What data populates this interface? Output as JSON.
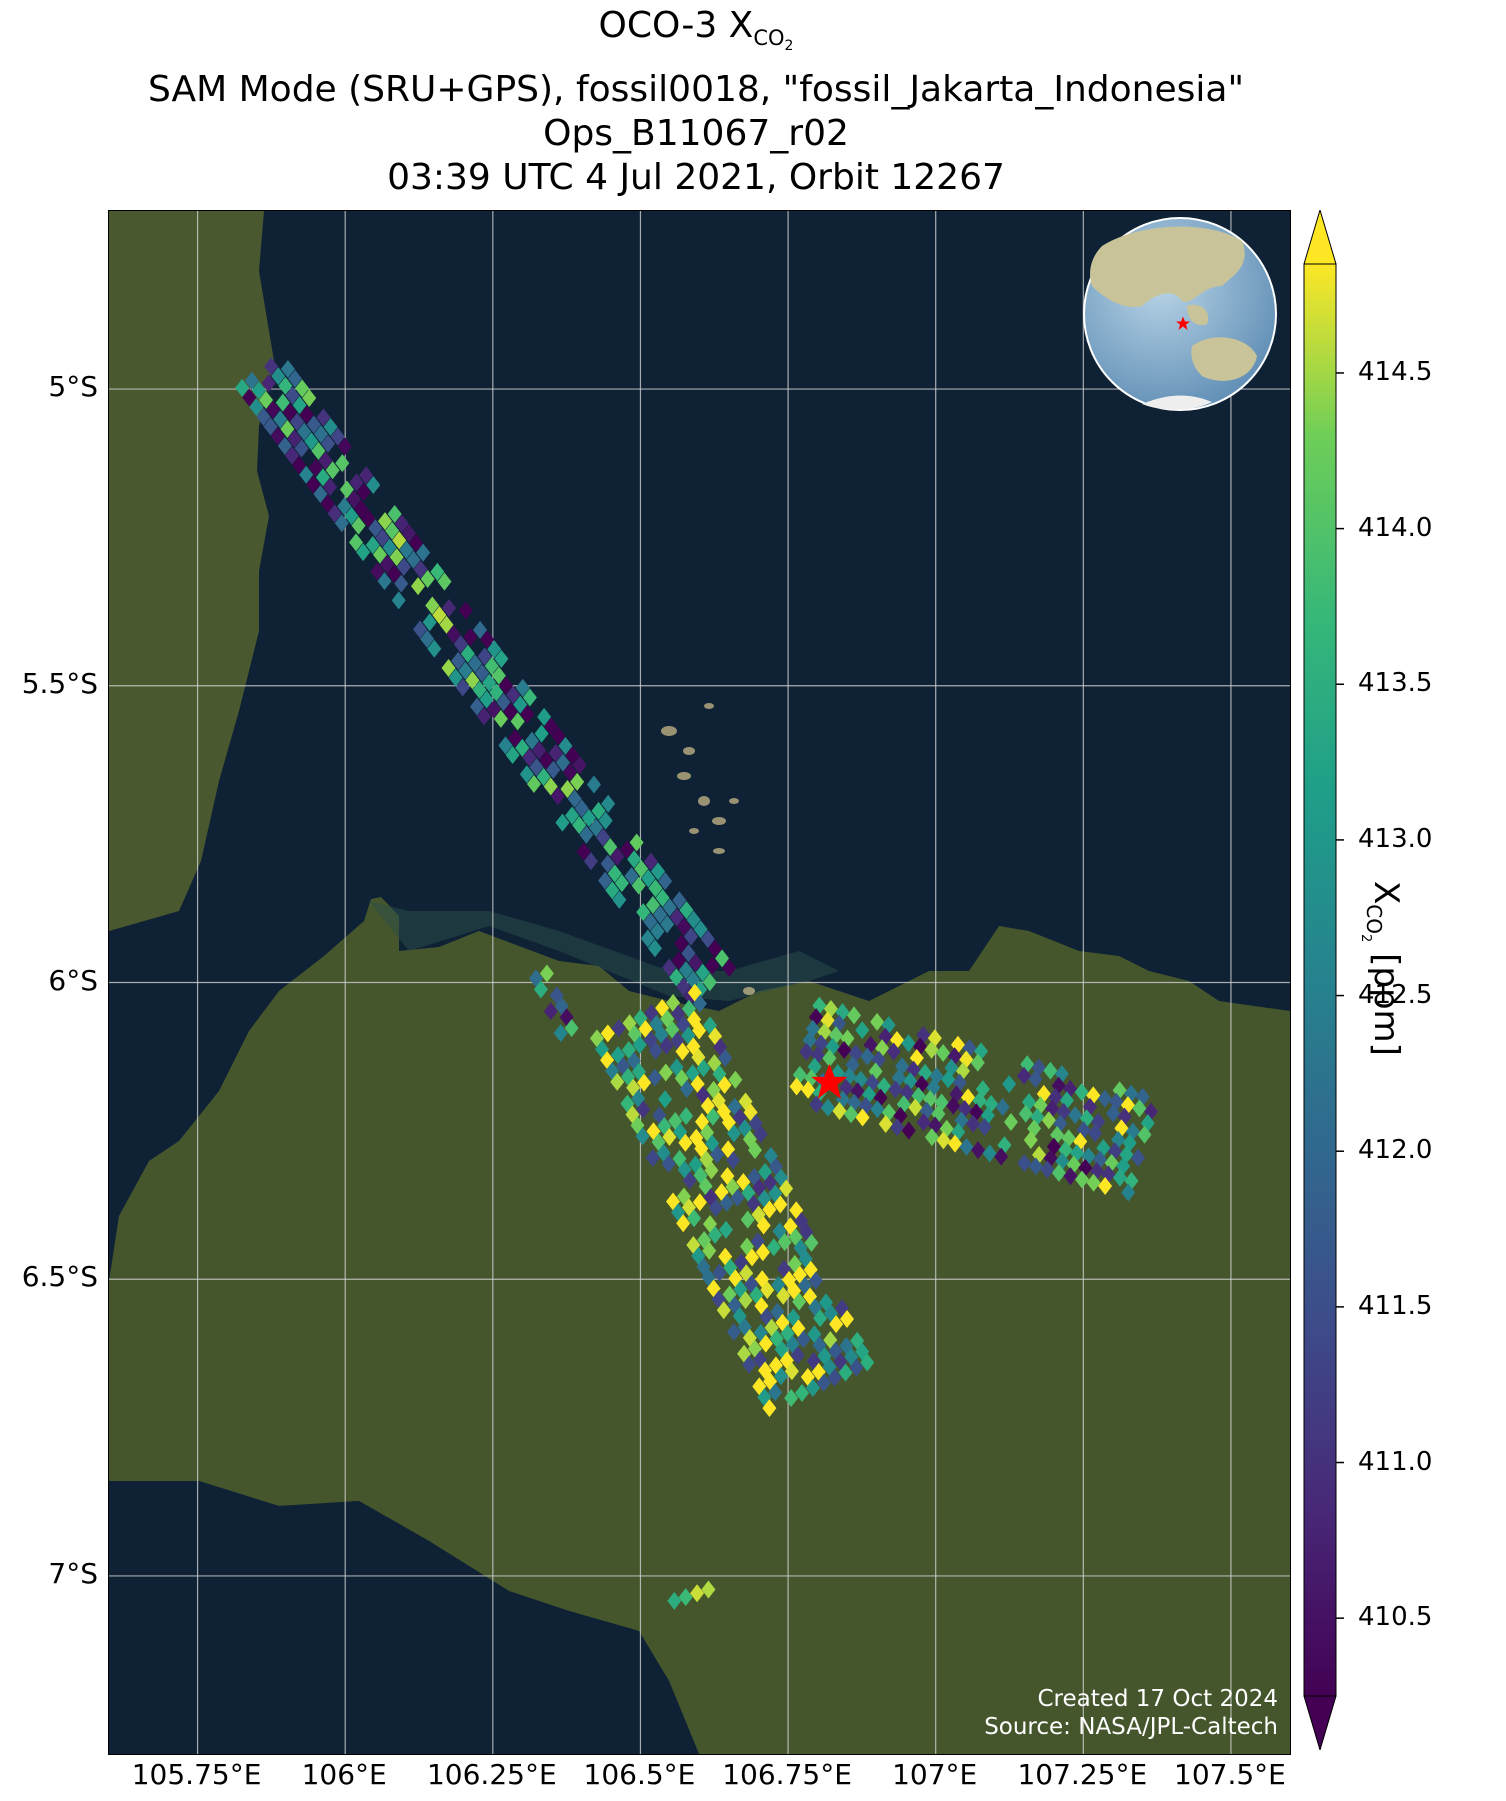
{
  "title": {
    "line1_main": "OCO-3 X",
    "line1_sub": "CO",
    "line1_sub2": "2",
    "line2": "SAM Mode (SRU+GPS), fossil0018, \"fossil_Jakarta_Indonesia\"",
    "line3": "Ops_B11067_r02",
    "line4": "03:39 UTC 4 Jul 2021, Orbit 12267"
  },
  "axes": {
    "lat_ticks": [
      "5°S",
      "5.5°S",
      "6°S",
      "6.5°S",
      "7°S"
    ],
    "lon_ticks": [
      "105.75°E",
      "106°E",
      "106.25°E",
      "106.5°E",
      "106.75°E",
      "107°E",
      "107.25°E",
      "107.5°E"
    ],
    "lat_range": [
      -7.3,
      -4.7
    ],
    "lon_range": [
      105.6,
      107.6
    ]
  },
  "colorbar": {
    "label_main": "X",
    "label_sub": "CO",
    "label_sub2": "2",
    "label_units": " [ppm]",
    "ticks": [
      "410.5",
      "411.0",
      "411.5",
      "412.0",
      "412.5",
      "413.0",
      "413.5",
      "414.0",
      "414.5"
    ],
    "min": 410.25,
    "max": 414.85,
    "colormap": "viridis",
    "extend": "both"
  },
  "target": {
    "name_symbol": "red-star",
    "lon": 106.82,
    "lat": -6.17,
    "color": "#ff0000"
  },
  "credits": {
    "created": "Created 17 Oct 2024",
    "source": "Source: NASA/JPL-Caltech"
  },
  "colors": {
    "sea": "#0f2235",
    "land": "#4a5a30",
    "grid": "#d0d0d0",
    "coast": "#000000"
  },
  "chart_data": {
    "type": "heatmap",
    "description_of_data": "OCO-3 XCO2 soundings swath over Jakarta region",
    "swaths": [
      {
        "name": "north-strip",
        "lon_start": 105.85,
        "lat_start": -4.98,
        "lon_end": 106.62,
        "lat_end": -6.02
      },
      {
        "name": "city-swath-west",
        "lon_start": 106.5,
        "lat_start": -6.06,
        "lon_end": 106.8,
        "lat_end": -6.7
      },
      {
        "name": "city-swath-east",
        "lon_start": 106.78,
        "lat_start": -6.12,
        "lon_end": 107.35,
        "lat_end": -6.28
      },
      {
        "name": "small-west",
        "lon_start": 106.33,
        "lat_start": -5.99,
        "lon_end": 106.38,
        "lat_end": -6.1
      },
      {
        "name": "south-strip",
        "lon_start": 106.56,
        "lat_start": -7.05,
        "lon_end": 106.65,
        "lat_end": -7.02
      }
    ],
    "value_range": [
      410.25,
      414.85
    ]
  }
}
